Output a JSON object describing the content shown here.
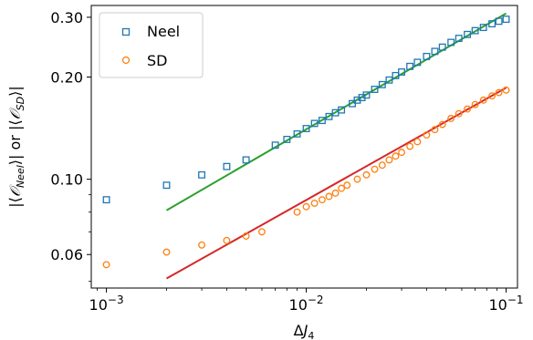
{
  "chart_data": {
    "type": "scatter",
    "title": "",
    "xlabel": "ΔJ₄",
    "ylabel": "|⟨𝒪_Neel⟩| or |⟨𝒪_SD⟩|",
    "xscale": "log",
    "yscale": "log",
    "xlim": [
      0.00084,
      0.114
    ],
    "ylim": [
      0.0478,
      0.325
    ],
    "xticks": [
      {
        "value": 0.001,
        "label": "10⁻³"
      },
      {
        "value": 0.01,
        "label": "10⁻²"
      },
      {
        "value": 0.1,
        "label": "10⁻¹"
      }
    ],
    "yticks": [
      {
        "value": 0.06,
        "label": "0.06"
      },
      {
        "value": 0.1,
        "label": "0.10"
      },
      {
        "value": 0.2,
        "label": "0.20"
      },
      {
        "value": 0.3,
        "label": "0.30"
      }
    ],
    "legend": {
      "position": "top-left"
    },
    "grid": false,
    "series": [
      {
        "name": "Neel",
        "marker": "square",
        "color": "#1f77b4",
        "x": [
          0.001,
          0.002,
          0.003,
          0.004,
          0.005,
          0.007,
          0.008,
          0.009,
          0.01,
          0.011,
          0.012,
          0.013,
          0.014,
          0.015,
          0.017,
          0.018,
          0.019,
          0.02,
          0.022,
          0.024,
          0.026,
          0.028,
          0.03,
          0.033,
          0.036,
          0.04,
          0.044,
          0.048,
          0.053,
          0.058,
          0.064,
          0.07,
          0.077,
          0.085,
          0.092,
          0.1
        ],
        "y": [
          0.087,
          0.096,
          0.103,
          0.109,
          0.114,
          0.126,
          0.131,
          0.136,
          0.141,
          0.146,
          0.149,
          0.153,
          0.157,
          0.16,
          0.167,
          0.171,
          0.174,
          0.177,
          0.184,
          0.19,
          0.196,
          0.202,
          0.207,
          0.215,
          0.221,
          0.23,
          0.238,
          0.245,
          0.253,
          0.26,
          0.267,
          0.274,
          0.28,
          0.287,
          0.292,
          0.296
        ]
      },
      {
        "name": "SD",
        "marker": "circle",
        "color": "#ff7f0e",
        "x": [
          0.001,
          0.002,
          0.003,
          0.004,
          0.005,
          0.006,
          0.009,
          0.01,
          0.011,
          0.012,
          0.013,
          0.014,
          0.015,
          0.016,
          0.018,
          0.02,
          0.022,
          0.024,
          0.026,
          0.028,
          0.03,
          0.033,
          0.036,
          0.04,
          0.044,
          0.048,
          0.053,
          0.058,
          0.064,
          0.07,
          0.077,
          0.085,
          0.092,
          0.1
        ],
        "y": [
          0.056,
          0.061,
          0.064,
          0.066,
          0.068,
          0.07,
          0.08,
          0.083,
          0.085,
          0.087,
          0.089,
          0.091,
          0.094,
          0.096,
          0.1,
          0.103,
          0.107,
          0.11,
          0.114,
          0.117,
          0.12,
          0.125,
          0.129,
          0.135,
          0.14,
          0.145,
          0.151,
          0.156,
          0.161,
          0.166,
          0.171,
          0.176,
          0.18,
          0.183
        ]
      }
    ],
    "fit_lines": [
      {
        "color": "#2ca02c",
        "x": [
          0.002,
          0.1
        ],
        "y": [
          0.081,
          0.308
        ]
      },
      {
        "color": "#d62728",
        "x": [
          0.002,
          0.1
        ],
        "y": [
          0.051,
          0.186
        ]
      }
    ]
  }
}
